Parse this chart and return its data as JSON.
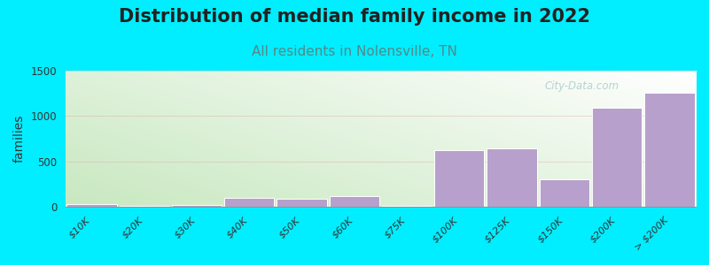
{
  "title": "Distribution of median family income in 2022",
  "subtitle": "All residents in Nolensville, TN",
  "ylabel": "families",
  "categories": [
    "$10K",
    "$20K",
    "$30K",
    "$40K",
    "$50K",
    "$60K",
    "$75K",
    "$100K",
    "$125K",
    "$150K",
    "$200K",
    "> $200K"
  ],
  "values": [
    25,
    10,
    15,
    95,
    90,
    120,
    8,
    625,
    645,
    305,
    1095,
    1260
  ],
  "bar_color": "#b8a0cc",
  "bar_edge_color": "#ffffff",
  "background_color": "#00eeff",
  "grad_left_color": "#c8e8c0",
  "grad_right_color": "#f0f8f0",
  "grad_top_color": "#ffffff",
  "ylim": [
    0,
    1500
  ],
  "yticks": [
    0,
    500,
    1000,
    1500
  ],
  "title_fontsize": 15,
  "subtitle_fontsize": 11,
  "subtitle_color": "#558888",
  "ylabel_fontsize": 10,
  "watermark_text": "City-Data.com",
  "grid_color": "#ddaaaa",
  "grid_alpha": 0.5,
  "bar_width": 0.95
}
